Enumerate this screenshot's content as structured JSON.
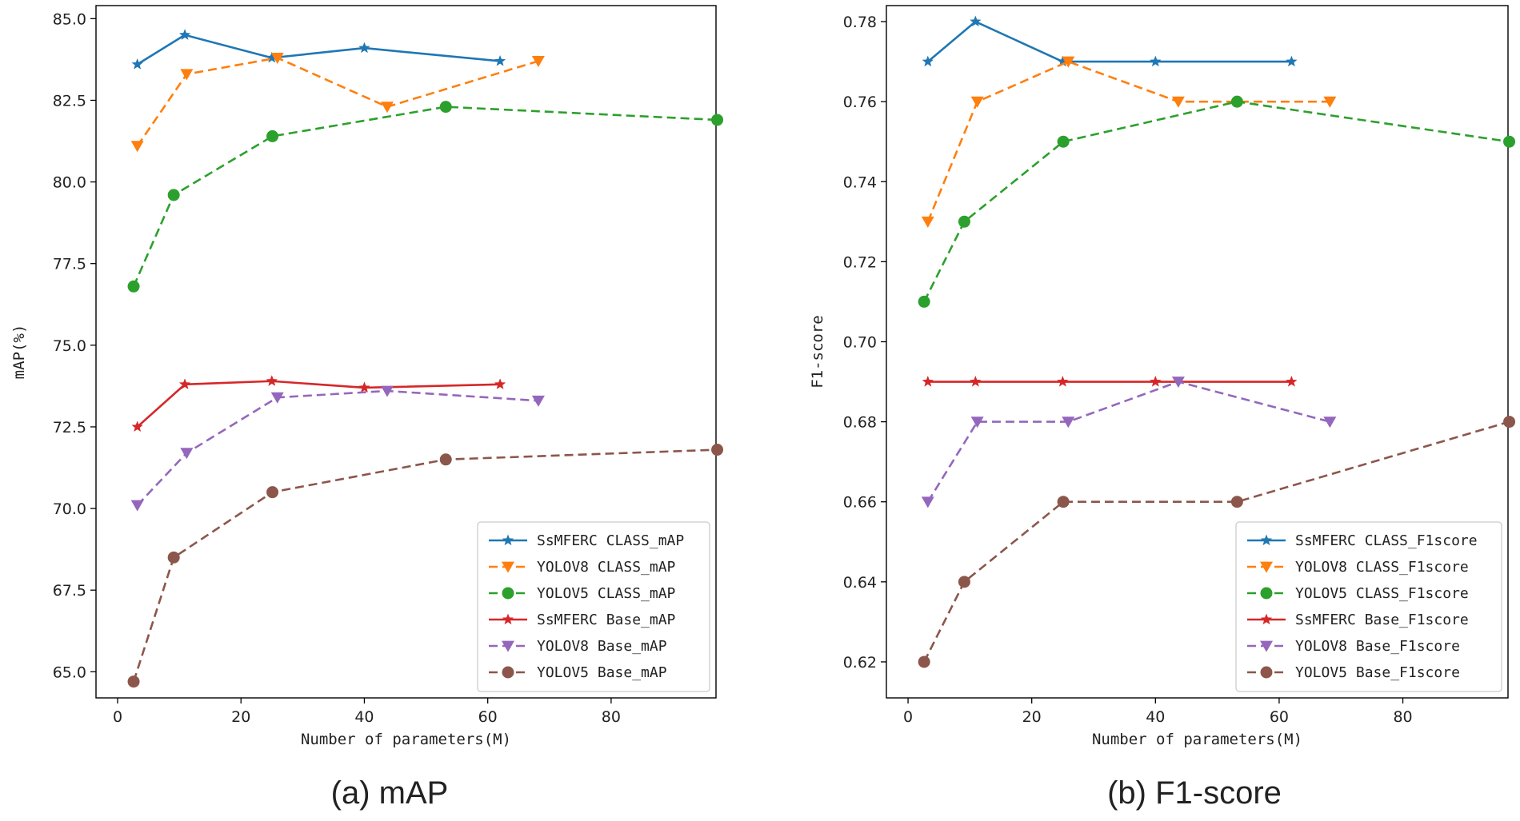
{
  "chart_data": [
    {
      "type": "line",
      "caption": "(a) mAP",
      "xlabel": "Number of parameters(M)",
      "ylabel": "mAP(%)",
      "xlim": [
        -3.5,
        97
      ],
      "ylim": [
        64.2,
        85.4
      ],
      "xticks": [
        0,
        20,
        40,
        60,
        80
      ],
      "yticks": [
        65.0,
        67.5,
        70.0,
        72.5,
        75.0,
        77.5,
        80.0,
        82.5,
        85.0
      ],
      "ytick_decimals": 1,
      "legend_position": "bottom-right",
      "series": [
        {
          "name": "SsMFERC CLASS_mAP",
          "color": "#1f77b4",
          "dash": "solid",
          "marker": "star",
          "x": [
            3.2,
            10.9,
            25.0,
            40.0,
            62.0
          ],
          "y": [
            83.6,
            84.5,
            83.8,
            84.1,
            83.7
          ]
        },
        {
          "name": "YOLOV8 CLASS_mAP",
          "color": "#ff7f0e",
          "dash": "dashed",
          "marker": "triangle-down",
          "x": [
            3.2,
            11.2,
            25.9,
            43.7,
            68.2
          ],
          "y": [
            81.1,
            83.3,
            83.8,
            82.3,
            83.7
          ]
        },
        {
          "name": "YOLOV5 CLASS_mAP",
          "color": "#2ca02c",
          "dash": "dashed",
          "marker": "circle",
          "x": [
            2.6,
            9.1,
            25.1,
            53.2,
            97.2
          ],
          "y": [
            76.8,
            79.6,
            81.4,
            82.3,
            81.9
          ]
        },
        {
          "name": "SsMFERC Base_mAP",
          "color": "#d62728",
          "dash": "solid",
          "marker": "star",
          "x": [
            3.2,
            10.9,
            25.0,
            40.0,
            62.0
          ],
          "y": [
            72.5,
            73.8,
            73.9,
            73.7,
            73.8
          ]
        },
        {
          "name": "YOLOV8 Base_mAP",
          "color": "#9467bd",
          "dash": "dashed",
          "marker": "triangle-down",
          "x": [
            3.2,
            11.2,
            25.9,
            43.7,
            68.2
          ],
          "y": [
            70.1,
            71.7,
            73.4,
            73.6,
            73.3
          ]
        },
        {
          "name": "YOLOV5 Base_mAP",
          "color": "#8c564b",
          "dash": "dashed",
          "marker": "circle",
          "x": [
            2.6,
            9.1,
            25.1,
            53.2,
            97.2
          ],
          "y": [
            64.7,
            68.5,
            70.5,
            71.5,
            71.8
          ]
        }
      ]
    },
    {
      "type": "line",
      "caption": "(b) F1-score",
      "xlabel": "Number of parameters(M)",
      "ylabel": "F1-score",
      "xlim": [
        -3.5,
        97
      ],
      "ylim": [
        0.611,
        0.784
      ],
      "xticks": [
        0,
        20,
        40,
        60,
        80
      ],
      "yticks": [
        0.62,
        0.64,
        0.66,
        0.68,
        0.7,
        0.72,
        0.74,
        0.76,
        0.78
      ],
      "ytick_decimals": 2,
      "legend_position": "bottom-right",
      "series": [
        {
          "name": "SsMFERC CLASS_F1score",
          "color": "#1f77b4",
          "dash": "solid",
          "marker": "star",
          "x": [
            3.2,
            10.9,
            25.0,
            40.0,
            62.0
          ],
          "y": [
            0.77,
            0.78,
            0.77,
            0.77,
            0.77
          ]
        },
        {
          "name": "YOLOV8 CLASS_F1score",
          "color": "#ff7f0e",
          "dash": "dashed",
          "marker": "triangle-down",
          "x": [
            3.2,
            11.2,
            25.9,
            43.7,
            68.2
          ],
          "y": [
            0.73,
            0.76,
            0.77,
            0.76,
            0.76
          ]
        },
        {
          "name": "YOLOV5 CLASS_F1score",
          "color": "#2ca02c",
          "dash": "dashed",
          "marker": "circle",
          "x": [
            2.6,
            9.1,
            25.1,
            53.2,
            97.2
          ],
          "y": [
            0.71,
            0.73,
            0.75,
            0.76,
            0.75
          ]
        },
        {
          "name": "SsMFERC Base_F1score",
          "color": "#d62728",
          "dash": "solid",
          "marker": "star",
          "x": [
            3.2,
            10.9,
            25.0,
            40.0,
            62.0
          ],
          "y": [
            0.69,
            0.69,
            0.69,
            0.69,
            0.69
          ]
        },
        {
          "name": "YOLOV8 Base_F1score",
          "color": "#9467bd",
          "dash": "dashed",
          "marker": "triangle-down",
          "x": [
            3.2,
            11.2,
            25.9,
            43.7,
            68.2
          ],
          "y": [
            0.66,
            0.68,
            0.68,
            0.69,
            0.68
          ]
        },
        {
          "name": "YOLOV5 Base_F1score",
          "color": "#8c564b",
          "dash": "dashed",
          "marker": "circle",
          "x": [
            2.6,
            9.1,
            25.1,
            53.2,
            97.2
          ],
          "y": [
            0.62,
            0.64,
            0.66,
            0.66,
            0.68
          ]
        }
      ]
    }
  ]
}
